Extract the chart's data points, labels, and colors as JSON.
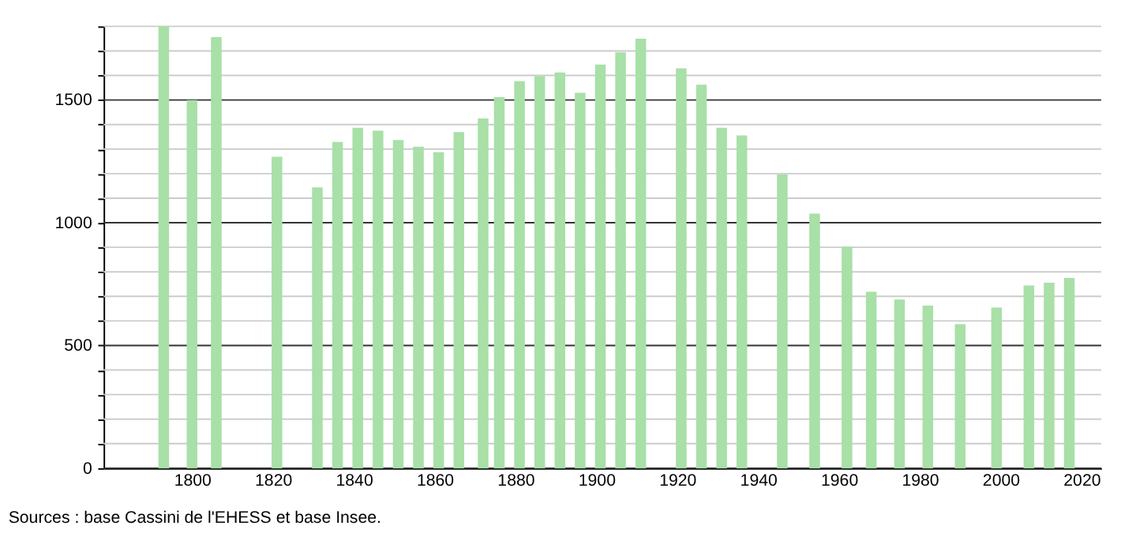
{
  "chart_data": {
    "type": "bar",
    "x": [
      1793,
      1800,
      1806,
      1821,
      1831,
      1836,
      1841,
      1846,
      1851,
      1856,
      1861,
      1866,
      1872,
      1876,
      1881,
      1886,
      1891,
      1896,
      1901,
      1906,
      1911,
      1921,
      1926,
      1931,
      1936,
      1946,
      1954,
      1962,
      1968,
      1975,
      1982,
      1990,
      1999,
      2007,
      2012,
      2017
    ],
    "values": [
      1800,
      1500,
      1756,
      1269,
      1144,
      1329,
      1387,
      1375,
      1337,
      1310,
      1287,
      1369,
      1425,
      1512,
      1577,
      1598,
      1612,
      1529,
      1644,
      1694,
      1750,
      1629,
      1562,
      1387,
      1356,
      1196,
      1037,
      902,
      719,
      687,
      662,
      587,
      654,
      744,
      756,
      775
    ],
    "color": "#a8e0a8",
    "xlim": [
      1780,
      2023
    ],
    "xticks": [
      1800,
      1820,
      1840,
      1860,
      1880,
      1900,
      1920,
      1940,
      1960,
      1980,
      2000,
      2020
    ],
    "ylim": [
      0,
      1800
    ],
    "yticks": [
      0,
      {
        "value": 100,
        "label": null
      },
      {
        "value": 200,
        "label": null
      },
      {
        "value": 300,
        "label": null
      },
      {
        "value": 400,
        "label": null
      },
      500,
      {
        "value": 600,
        "label": null
      },
      {
        "value": 700,
        "label": null
      },
      {
        "value": 800,
        "label": null
      },
      {
        "value": 900,
        "label": null
      },
      1000,
      {
        "value": 1100,
        "label": null
      },
      {
        "value": 1200,
        "label": null
      },
      {
        "value": 1300,
        "label": null
      },
      {
        "value": 1400,
        "label": null
      },
      1500,
      {
        "value": 1600,
        "label": null
      },
      {
        "value": 1700,
        "label": null
      },
      {
        "value": 1800,
        "label": null
      }
    ],
    "grid": "y",
    "annotations": [
      "Sources : base Cassini de l'EHESS et base Insee."
    ]
  }
}
